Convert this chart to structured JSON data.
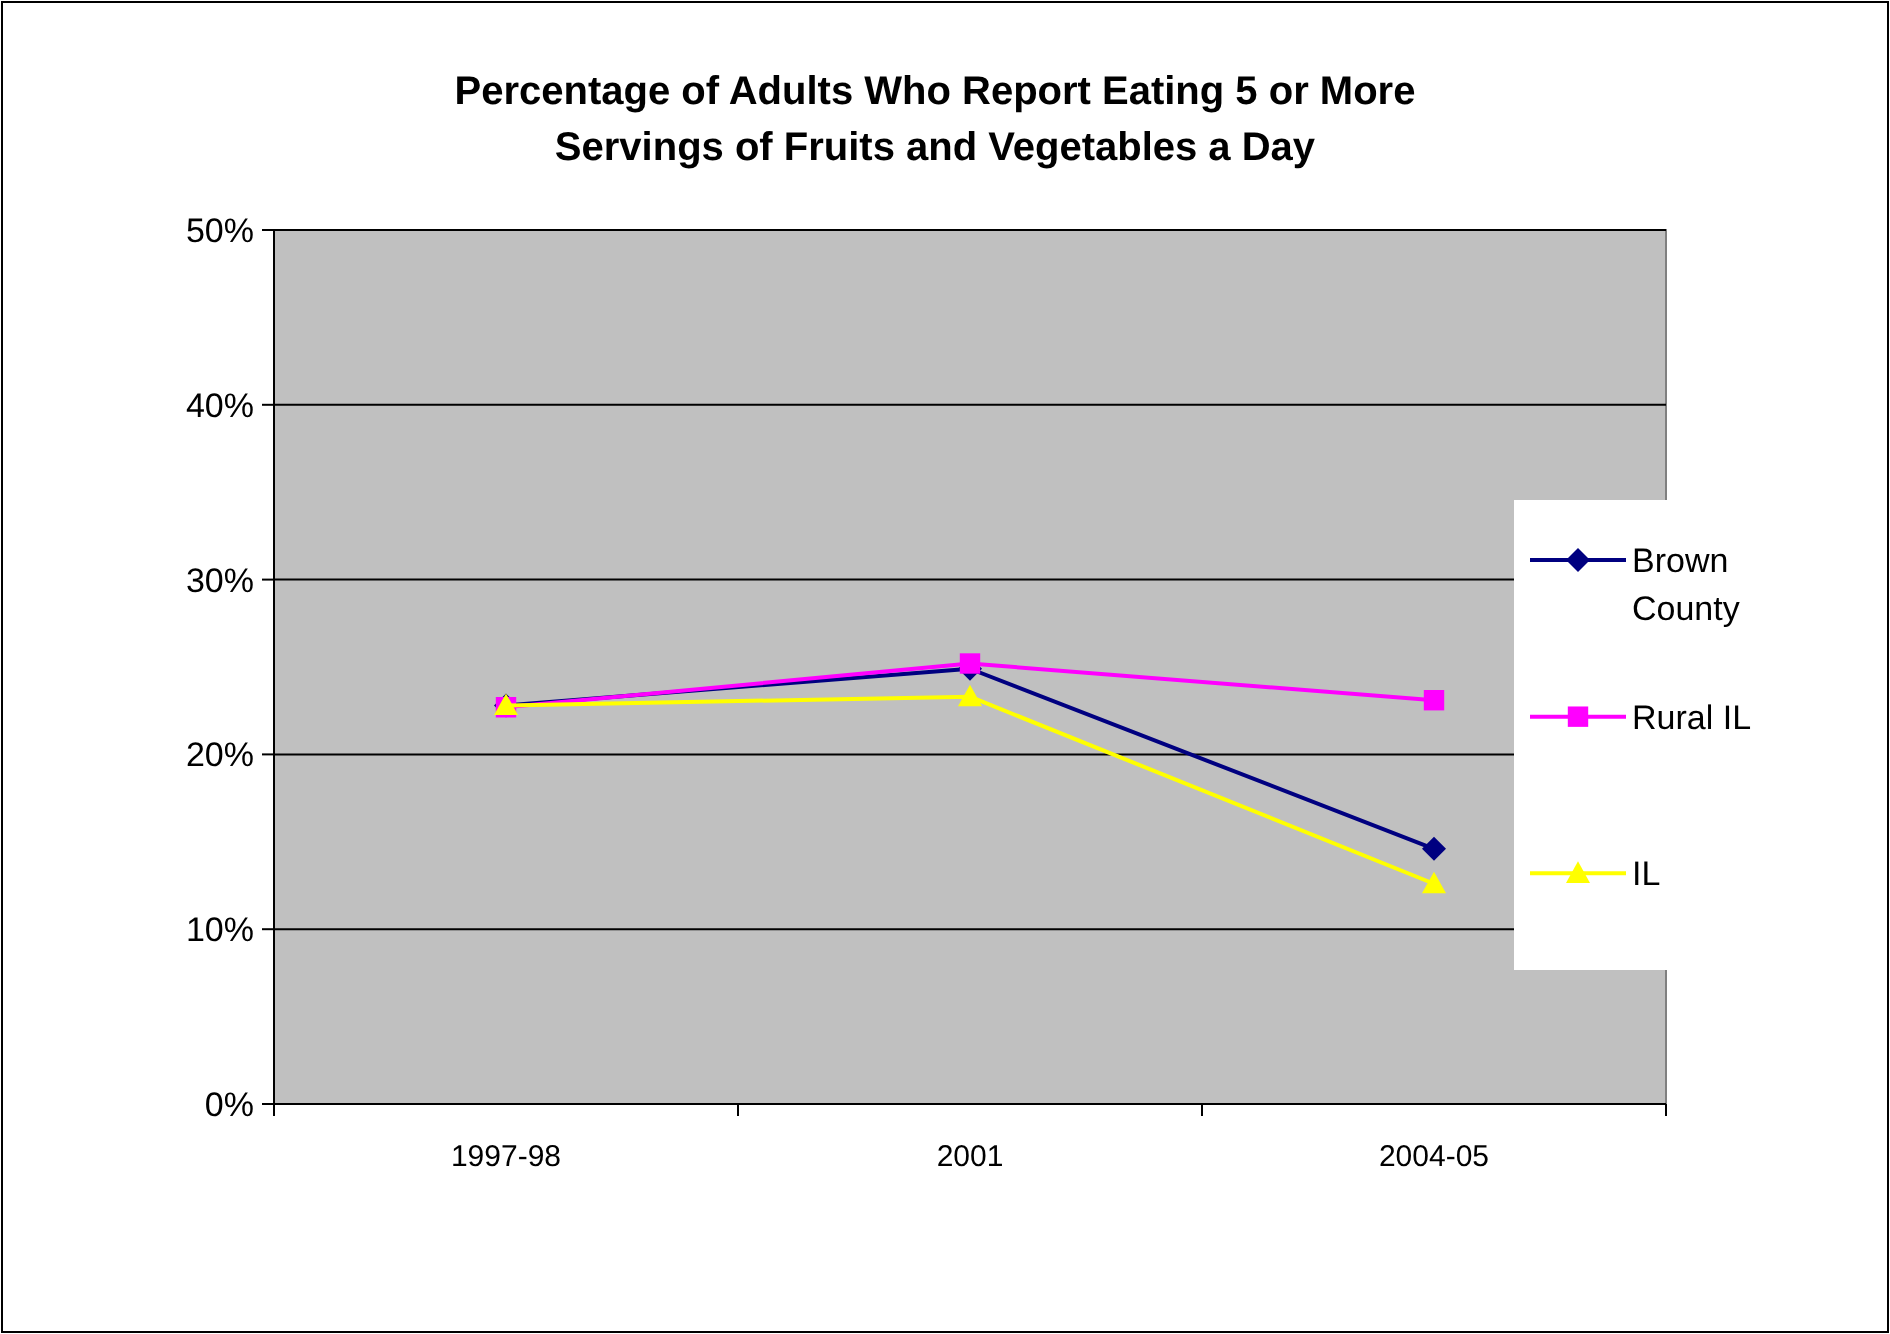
{
  "chart_data": {
    "type": "line",
    "title": "Percentage of Adults Who Report Eating 5 or More Servings of Fruits and Vegetables a Day",
    "categories": [
      "1997-98",
      "2001",
      "2004-05"
    ],
    "series": [
      {
        "name": "Brown County",
        "color": "#000080",
        "marker": "diamond",
        "values": [
          22.8,
          24.9,
          14.6
        ]
      },
      {
        "name": "Rural IL",
        "color": "#ff00ff",
        "marker": "square",
        "values": [
          22.7,
          25.2,
          23.1
        ]
      },
      {
        "name": "IL",
        "color": "#ffff00",
        "marker": "triangle",
        "values": [
          22.8,
          23.3,
          12.6
        ]
      }
    ],
    "ylim": [
      0,
      50
    ],
    "yticks": [
      {
        "value": 0,
        "label": "0%"
      },
      {
        "value": 10,
        "label": "10%"
      },
      {
        "value": 20,
        "label": "20%"
      },
      {
        "value": 30,
        "label": "30%"
      },
      {
        "value": 40,
        "label": "40%"
      },
      {
        "value": 50,
        "label": "50%"
      }
    ],
    "grid": "y",
    "legend": "right"
  }
}
